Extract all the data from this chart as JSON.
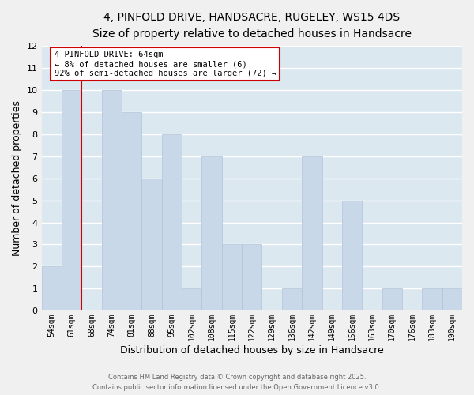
{
  "title": "4, PINFOLD DRIVE, HANDSACRE, RUGELEY, WS15 4DS",
  "subtitle": "Size of property relative to detached houses in Handsacre",
  "xlabel": "Distribution of detached houses by size in Handsacre",
  "ylabel": "Number of detached properties",
  "bar_color": "#c8d8e8",
  "bar_edge_color": "#b0c4d8",
  "grid_color": "#ffffff",
  "bg_color": "#dce8f0",
  "fig_bg_color": "#f0f0f0",
  "bin_labels": [
    "54sqm",
    "61sqm",
    "68sqm",
    "74sqm",
    "81sqm",
    "88sqm",
    "95sqm",
    "102sqm",
    "108sqm",
    "115sqm",
    "122sqm",
    "129sqm",
    "136sqm",
    "142sqm",
    "149sqm",
    "156sqm",
    "163sqm",
    "170sqm",
    "176sqm",
    "183sqm",
    "190sqm"
  ],
  "bar_heights": [
    2,
    10,
    0,
    10,
    9,
    6,
    8,
    1,
    7,
    3,
    3,
    0,
    1,
    7,
    0,
    5,
    0,
    1,
    0,
    1,
    1
  ],
  "ylim": [
    0,
    12
  ],
  "yticks": [
    0,
    1,
    2,
    3,
    4,
    5,
    6,
    7,
    8,
    9,
    10,
    11,
    12
  ],
  "property_line_x": 1.5,
  "annotation_title": "4 PINFOLD DRIVE: 64sqm",
  "annotation_line1": "← 8% of detached houses are smaller (6)",
  "annotation_line2": "92% of semi-detached houses are larger (72) →",
  "vline_color": "#cc0000",
  "footer1": "Contains HM Land Registry data © Crown copyright and database right 2025.",
  "footer2": "Contains public sector information licensed under the Open Government Licence v3.0."
}
